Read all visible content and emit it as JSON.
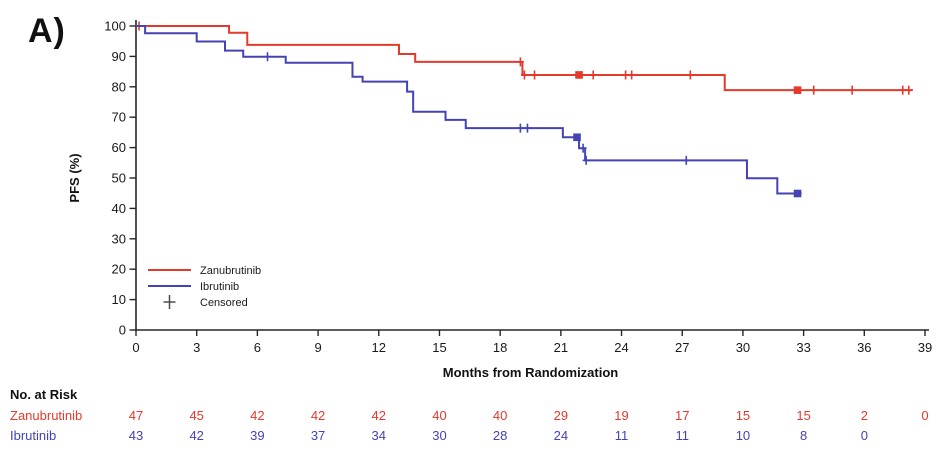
{
  "panel_label": "A)",
  "colors": {
    "zanubrutinib": "#e5392c",
    "ibrutinib": "#4443b4",
    "axis": "#262626",
    "censored_legend": "#4d4d4d"
  },
  "legend": [
    {
      "label": "Zanubrutinib",
      "color": "#e5392c",
      "marker": "line"
    },
    {
      "label": "Ibrutinib",
      "color": "#4443b4",
      "marker": "line"
    },
    {
      "label": "Censored",
      "color": "#4d4d4d",
      "marker": "plus"
    }
  ],
  "chart_data": {
    "type": "line",
    "subtype": "kaplan-meier-step",
    "title": "",
    "xlabel": "Months from Randomization",
    "ylabel": "PFS (%)",
    "xlim": [
      0,
      39
    ],
    "ylim": [
      0,
      100
    ],
    "xticks": [
      0,
      3,
      6,
      9,
      12,
      15,
      18,
      21,
      24,
      27,
      30,
      33,
      36,
      39
    ],
    "yticks": [
      0,
      10,
      20,
      30,
      40,
      50,
      60,
      70,
      80,
      90,
      100
    ],
    "grid": false,
    "legend_position": "lower-left-inside",
    "series": [
      {
        "name": "Zanubrutinib",
        "color": "#e5392c",
        "steps": [
          [
            0,
            100
          ],
          [
            4.6,
            97.8
          ],
          [
            5.5,
            93.8
          ],
          [
            13.0,
            90.8
          ],
          [
            13.8,
            88.2
          ],
          [
            19.1,
            83.9
          ],
          [
            29.1,
            78.9
          ]
        ],
        "end_month": 38.4,
        "censors": [
          [
            0.15,
            100
          ],
          [
            19.0,
            88.2
          ],
          [
            19.2,
            83.9
          ],
          [
            19.7,
            83.9
          ],
          [
            22.6,
            83.9
          ],
          [
            24.2,
            83.9
          ],
          [
            24.5,
            83.9
          ],
          [
            27.4,
            83.9
          ],
          [
            33.5,
            78.9
          ],
          [
            35.4,
            78.9
          ],
          [
            37.9,
            78.9
          ],
          [
            38.2,
            78.9
          ]
        ],
        "censor_squares": [
          [
            21.9,
            83.9
          ],
          [
            32.7,
            78.9
          ]
        ]
      },
      {
        "name": "Ibrutinib",
        "color": "#4443b4",
        "steps": [
          [
            0,
            100
          ],
          [
            0.45,
            97.6
          ],
          [
            3.0,
            94.9
          ],
          [
            4.4,
            91.9
          ],
          [
            5.3,
            89.9
          ],
          [
            7.4,
            87.9
          ],
          [
            10.7,
            83.3
          ],
          [
            11.2,
            81.7
          ],
          [
            13.4,
            78.4
          ],
          [
            13.7,
            71.8
          ],
          [
            15.3,
            69.1
          ],
          [
            16.3,
            66.4
          ],
          [
            21.1,
            63.4
          ],
          [
            21.9,
            59.8
          ],
          [
            22.2,
            55.8
          ],
          [
            30.2,
            49.9
          ],
          [
            31.7,
            44.9
          ]
        ],
        "end_month": 32.9,
        "censors": [
          [
            6.5,
            89.9
          ],
          [
            19.0,
            66.4
          ],
          [
            19.35,
            66.4
          ],
          [
            22.1,
            59.8
          ],
          [
            22.25,
            55.8
          ],
          [
            27.2,
            55.8
          ]
        ],
        "censor_squares": [
          [
            21.8,
            63.4
          ],
          [
            32.7,
            44.9
          ]
        ]
      }
    ]
  },
  "risk_table": {
    "title": "No. at Risk",
    "months": [
      0,
      3,
      6,
      9,
      12,
      15,
      18,
      21,
      24,
      27,
      30,
      33,
      36,
      39
    ],
    "rows": [
      {
        "name": "Zanubrutinib",
        "color": "#e5392c",
        "counts": [
          "47",
          "45",
          "42",
          "42",
          "42",
          "40",
          "40",
          "29",
          "19",
          "17",
          "15",
          "15",
          "2",
          "0"
        ]
      },
      {
        "name": "Ibrutinib",
        "color": "#4443b4",
        "counts": [
          "43",
          "42",
          "39",
          "37",
          "34",
          "30",
          "28",
          "24",
          "11",
          "11",
          "10",
          "8",
          "0",
          ""
        ]
      }
    ]
  }
}
